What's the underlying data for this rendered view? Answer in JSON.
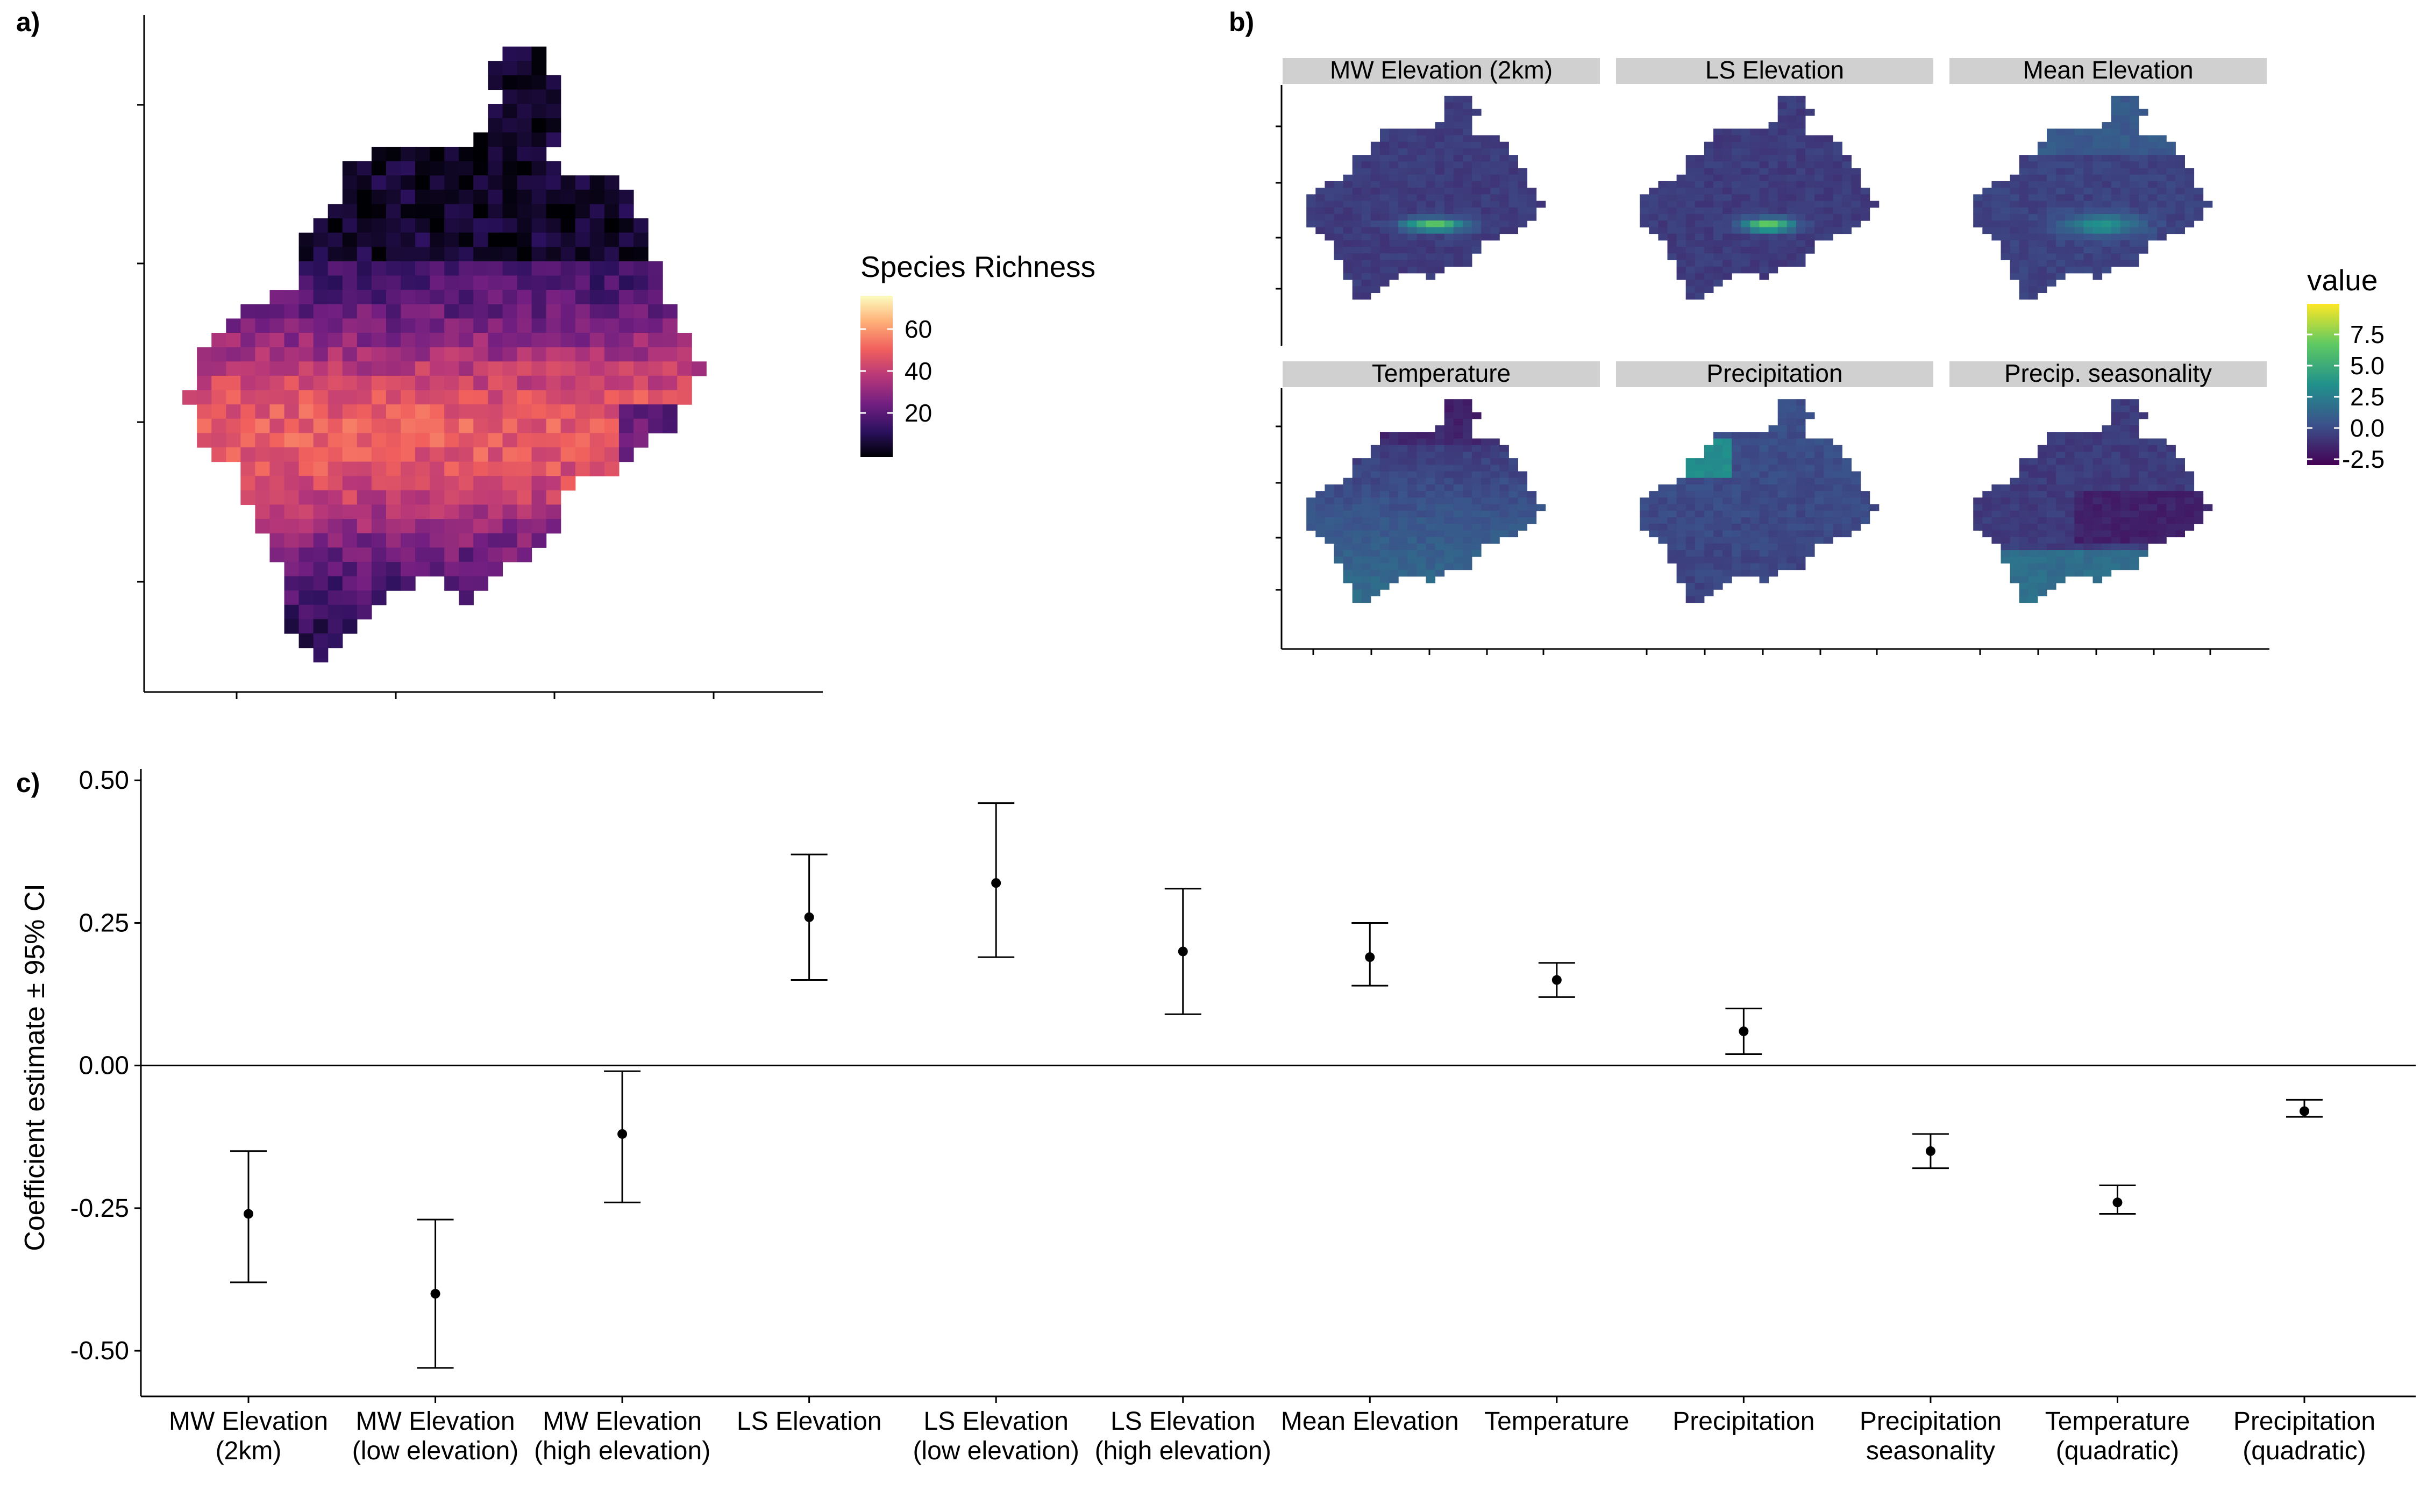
{
  "panels": {
    "a": {
      "tag": "a)"
    },
    "b": {
      "tag": "b)"
    },
    "c": {
      "tag": "c)"
    }
  },
  "chart_data": [
    {
      "panel": "a",
      "type": "heatmap",
      "subject": "Europe gridded map",
      "legend": {
        "title": "Species Richness",
        "ticks": [
          60,
          40,
          20
        ],
        "range": [
          0,
          72
        ],
        "colormap": "magma",
        "colors": [
          "#000004",
          "#2c115f",
          "#721f81",
          "#b73779",
          "#f1605d",
          "#feb078",
          "#fcfdbf"
        ]
      },
      "axes": {
        "x_tick_labels": [],
        "y_tick_labels": []
      }
    },
    {
      "panel": "b",
      "type": "heatmap",
      "subject": "Europe gridded maps, faceted",
      "facets": [
        "MW Elevation (2km)",
        "LS Elevation",
        "Mean Elevation",
        "Temperature",
        "Precipitation",
        "Precip. seasonality"
      ],
      "legend": {
        "title": "value",
        "ticks": [
          "7.5",
          "5.0",
          "2.5",
          "0.0",
          "-2.5"
        ],
        "range": [
          -3.5,
          9.5
        ],
        "colormap": "viridis",
        "colors": [
          "#440154",
          "#3b528b",
          "#21918c",
          "#5ec962",
          "#fde725"
        ]
      },
      "strip_color": "#d0d0d0"
    },
    {
      "panel": "c",
      "type": "scatter",
      "subtype": "point with error bars",
      "title": "",
      "xlabel": "",
      "ylabel": "Coefficient estimate ± 95% CI",
      "ylim": [
        -0.58,
        0.52
      ],
      "yticks": [
        "0.50",
        "0.25",
        "0.00",
        "-0.25",
        "-0.50"
      ],
      "ytick_values": [
        0.5,
        0.25,
        0.0,
        -0.25,
        -0.5
      ],
      "reference_line": 0.0,
      "grid": false,
      "categories": [
        [
          "MW Elevation",
          "(2km)"
        ],
        [
          "MW Elevation",
          "(low elevation)"
        ],
        [
          "MW Elevation",
          "(high elevation)"
        ],
        [
          "LS Elevation"
        ],
        [
          "LS Elevation",
          "(low elevation)"
        ],
        [
          "LS Elevation",
          "(high elevation)"
        ],
        [
          "Mean Elevation"
        ],
        [
          "Temperature"
        ],
        [
          "Precipitation"
        ],
        [
          "Precipitation",
          "seasonality"
        ],
        [
          "Temperature",
          "(quadratic)"
        ],
        [
          "Precipitation",
          "(quadratic)"
        ]
      ],
      "estimate": [
        -0.26,
        -0.4,
        -0.12,
        0.26,
        0.32,
        0.2,
        0.19,
        0.15,
        0.06,
        -0.15,
        -0.24,
        -0.08
      ],
      "lower": [
        -0.38,
        -0.53,
        -0.24,
        0.15,
        0.19,
        0.09,
        0.14,
        0.12,
        0.02,
        -0.18,
        -0.26,
        -0.09
      ],
      "upper": [
        -0.15,
        -0.27,
        -0.01,
        0.37,
        0.46,
        0.31,
        0.25,
        0.18,
        0.1,
        -0.12,
        -0.21,
        -0.06
      ]
    }
  ]
}
